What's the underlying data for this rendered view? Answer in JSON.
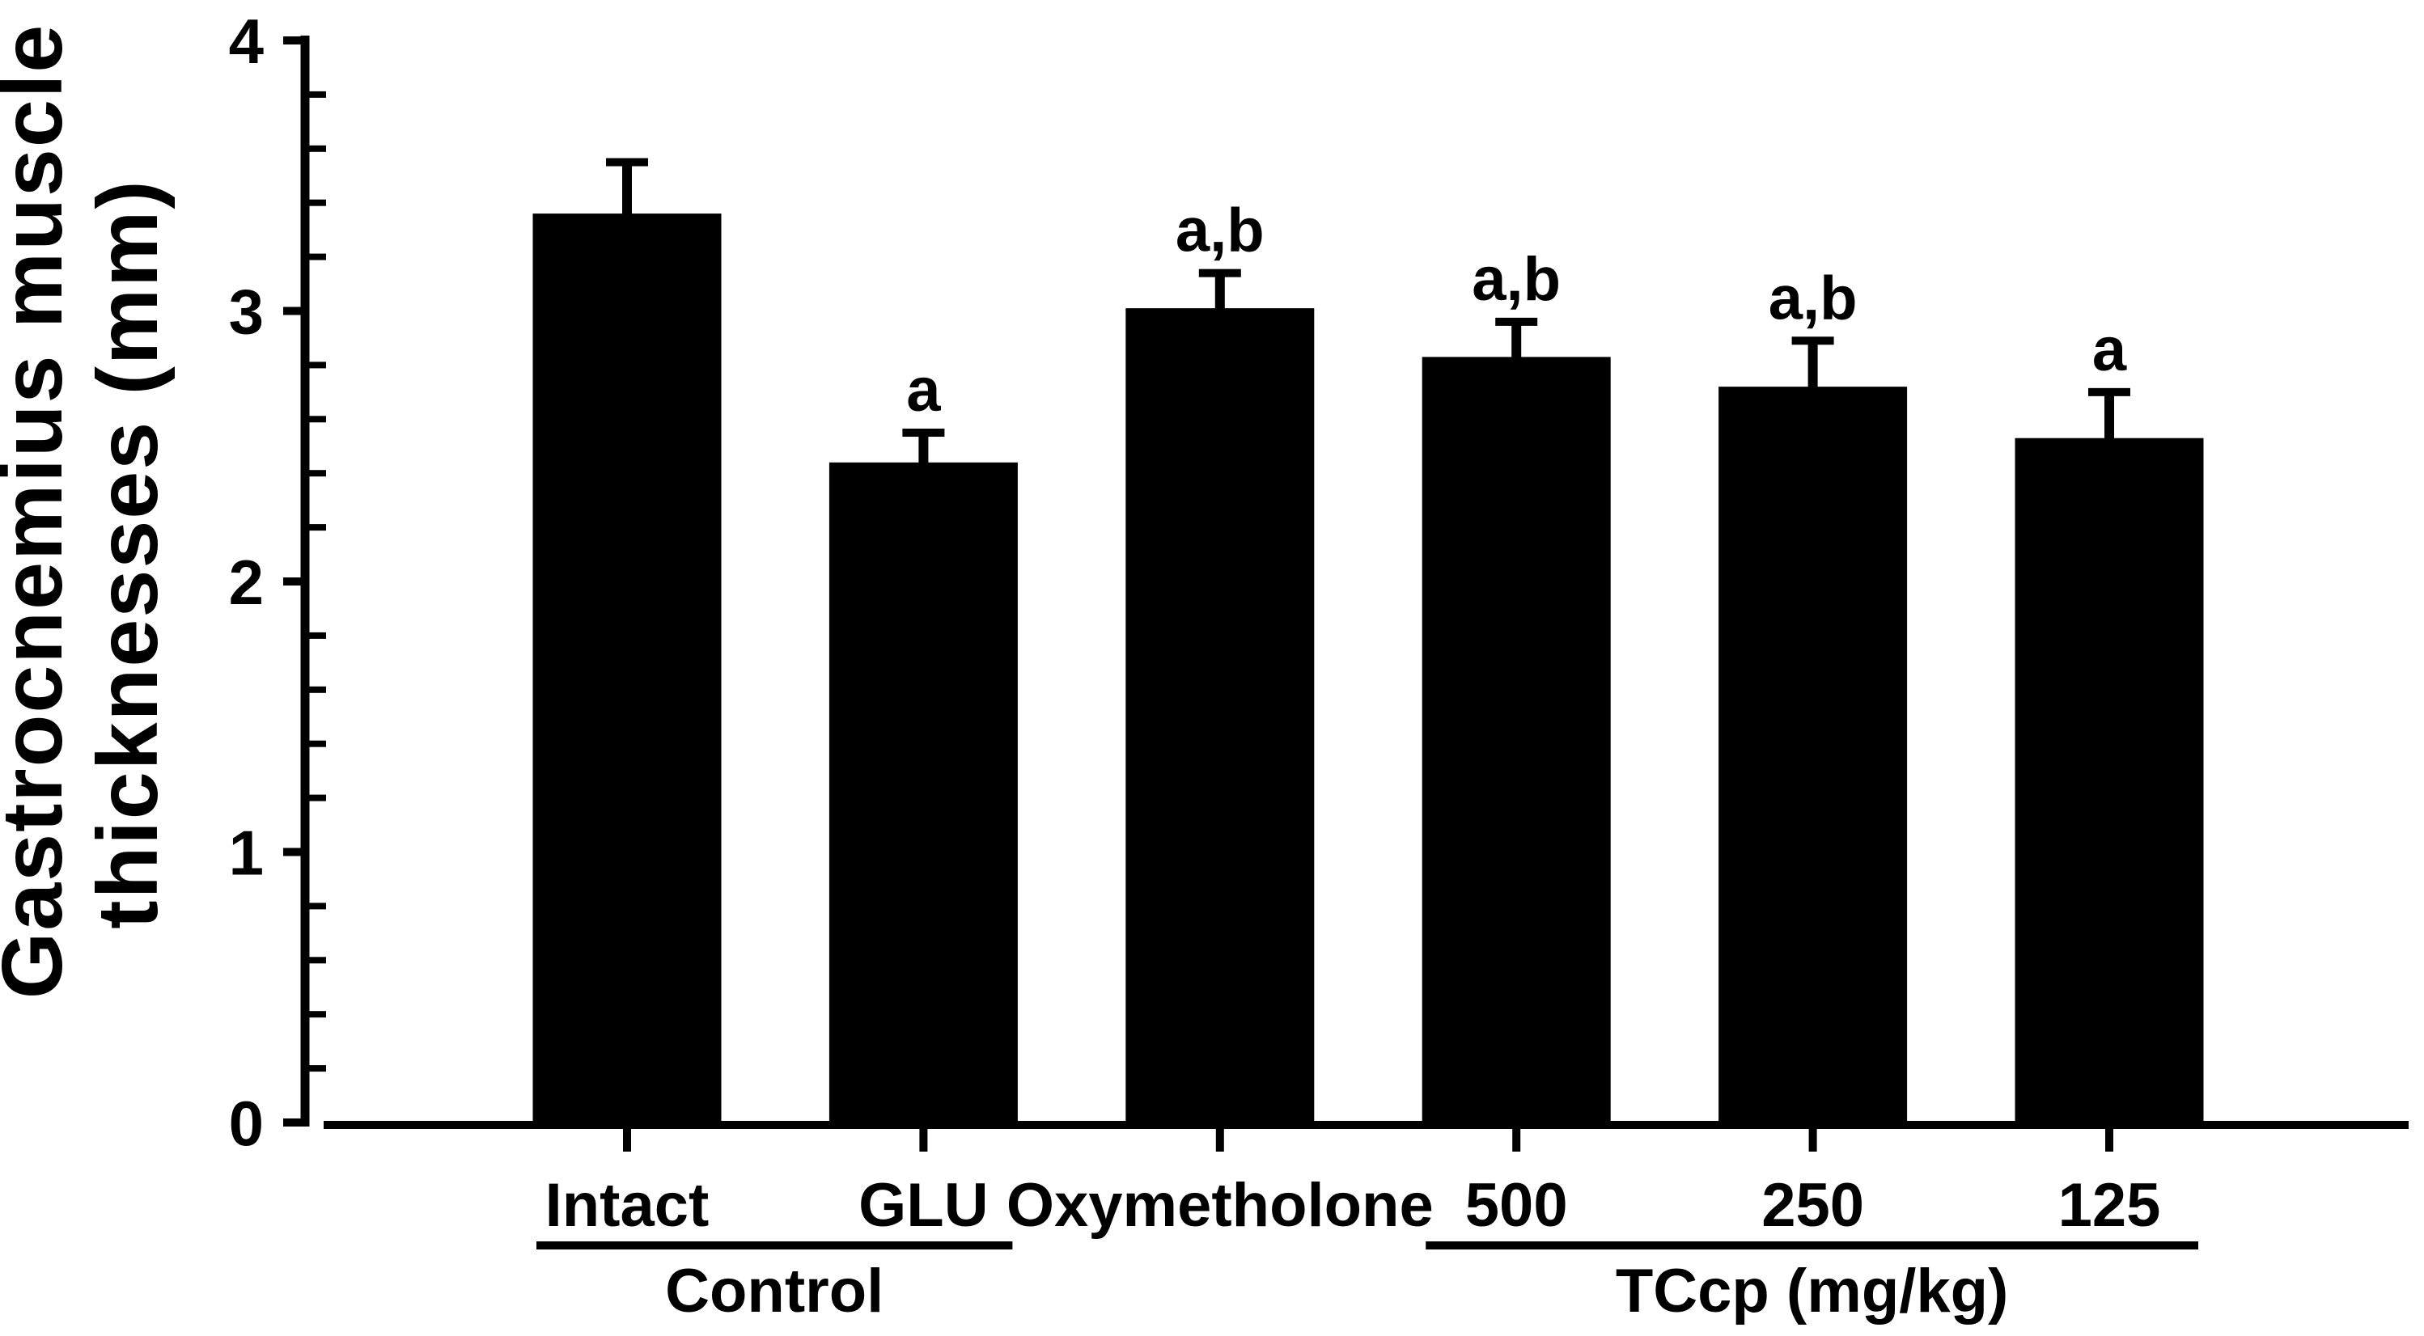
{
  "figure": {
    "background_color": "#ffffff",
    "ink_color": "#000000"
  },
  "chart_data": {
    "type": "bar",
    "title": "",
    "ylabel_line1": "Gastrocnemius muscle",
    "ylabel_line2": "thicknesses (mm)",
    "ylabel": "Gastrocnemius muscle thicknesses (mm)",
    "xlabel": "",
    "ylim": [
      0,
      4
    ],
    "y_major_ticks": [
      0,
      1,
      2,
      3,
      4
    ],
    "y_minor_step": 0.2,
    "grid": false,
    "legend": "none",
    "bar_color": "#000000",
    "error_bar_color": "#000000",
    "error_direction": "up",
    "categories": [
      "Intact",
      "GLU",
      "Oxymetholone",
      "500",
      "250",
      "125"
    ],
    "values": [
      3.36,
      2.44,
      3.01,
      2.83,
      2.72,
      2.53
    ],
    "errors": [
      0.19,
      0.11,
      0.13,
      0.13,
      0.17,
      0.17
    ],
    "annotations": [
      "",
      "a",
      "a,b",
      "a,b",
      "a,b",
      "a"
    ],
    "groups": [
      {
        "label": "Control",
        "start_index": 0,
        "end_index": 1
      },
      {
        "label": "TCcp (mg/kg)",
        "start_index": 3,
        "end_index": 5
      }
    ]
  }
}
